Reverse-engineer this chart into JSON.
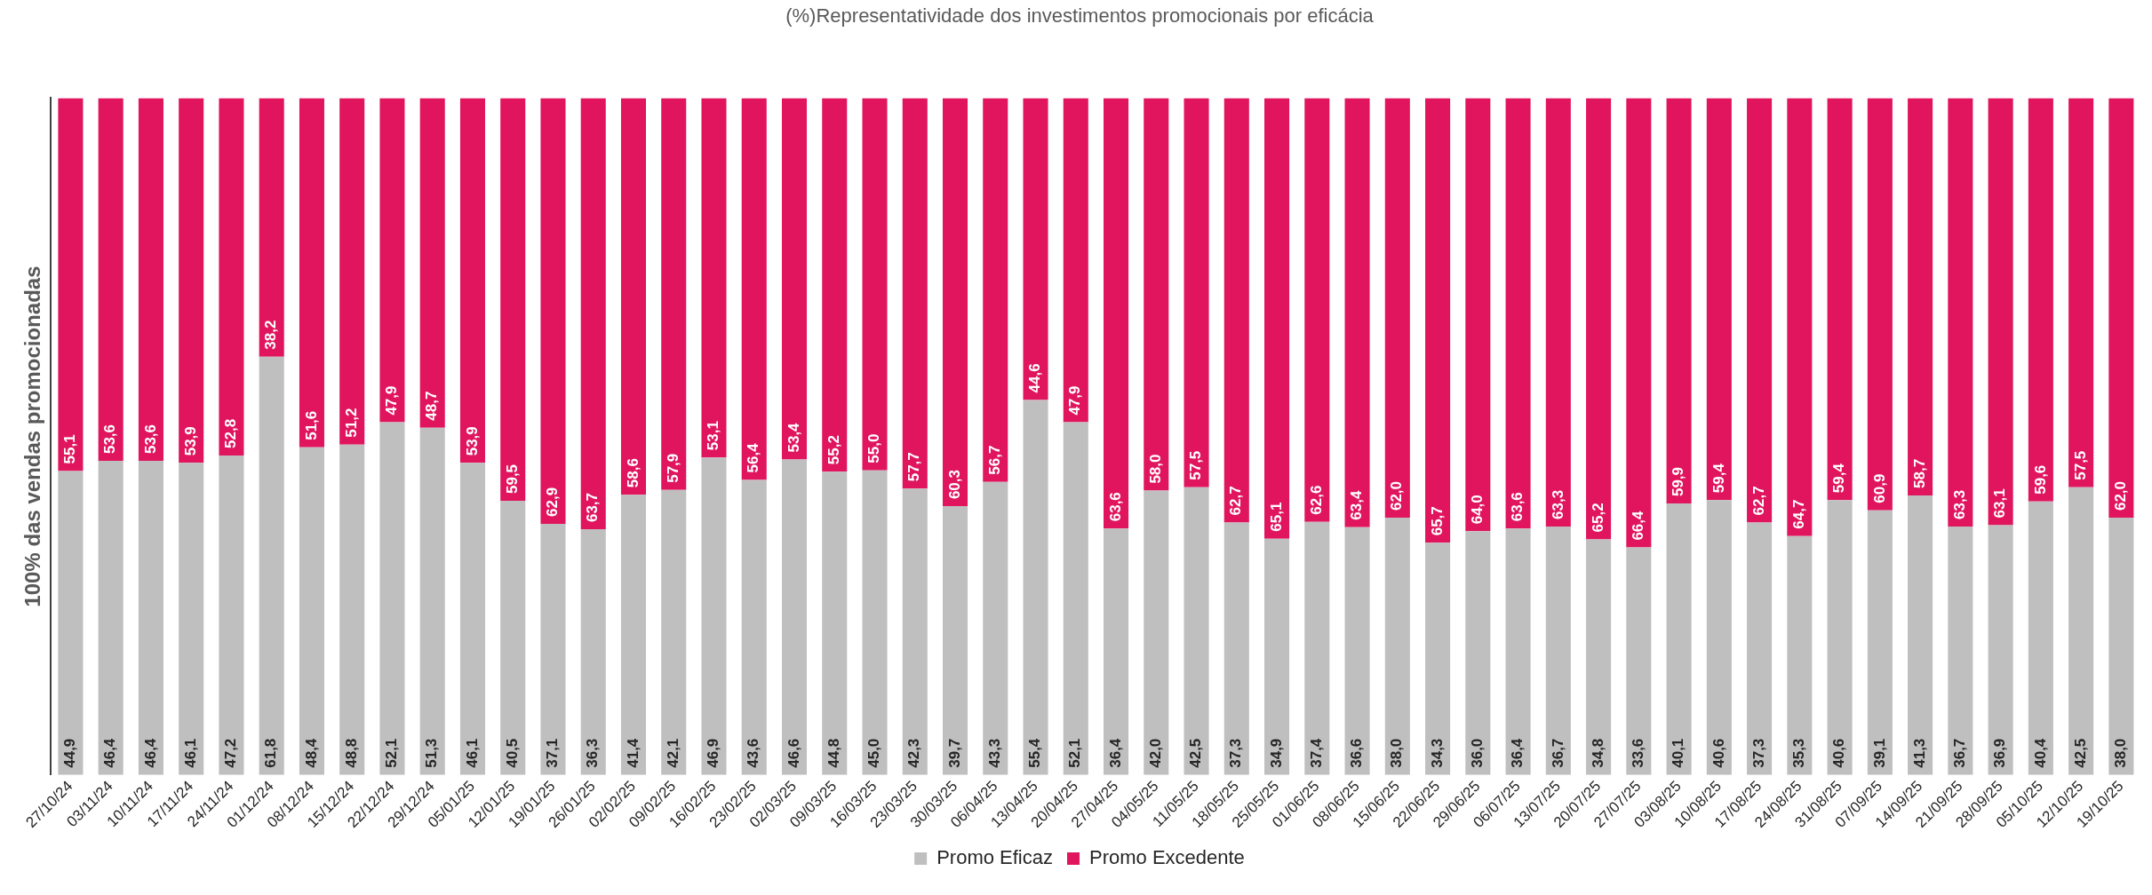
{
  "chart_data": {
    "type": "bar",
    "stacked": true,
    "title": "(%)Representatividade dos investimentos promocionais por eficácia",
    "ylabel": "100% das vendas promocionadas",
    "legend": "bottom",
    "grid": false,
    "tick_labels": "x",
    "categories": [
      "27/10/24",
      "03/11/24",
      "10/11/24",
      "17/11/24",
      "24/11/24",
      "01/12/24",
      "08/12/24",
      "15/12/24",
      "22/12/24",
      "29/12/24",
      "05/01/25",
      "12/01/25",
      "19/01/25",
      "26/01/25",
      "02/02/25",
      "09/02/25",
      "16/02/25",
      "23/02/25",
      "02/03/25",
      "09/03/25",
      "16/03/25",
      "23/03/25",
      "30/03/25",
      "06/04/25",
      "13/04/25",
      "20/04/25",
      "27/04/25",
      "04/05/25",
      "11/05/25",
      "18/05/25",
      "25/05/25",
      "01/06/25",
      "08/06/25",
      "15/06/25",
      "22/06/25",
      "29/06/25",
      "06/07/25",
      "13/07/25",
      "20/07/25",
      "27/07/25",
      "03/08/25",
      "10/08/25",
      "17/08/25",
      "24/08/25",
      "31/08/25",
      "07/09/25",
      "14/09/25",
      "21/09/25",
      "28/09/25",
      "05/10/25",
      "12/10/25",
      "19/10/25"
    ],
    "series": [
      {
        "name": "Promo Eficaz",
        "color": "#bfbfbf",
        "values": [
          44.9,
          46.4,
          46.4,
          46.1,
          47.2,
          61.8,
          48.4,
          48.8,
          52.1,
          51.3,
          46.1,
          40.5,
          37.1,
          36.3,
          41.4,
          42.1,
          46.9,
          43.6,
          46.6,
          44.8,
          45.0,
          42.3,
          39.7,
          43.3,
          55.4,
          52.1,
          36.4,
          42.0,
          42.5,
          37.3,
          34.9,
          37.4,
          36.6,
          38.0,
          34.3,
          36.0,
          36.4,
          36.7,
          34.8,
          33.6,
          40.1,
          40.6,
          37.3,
          35.3,
          40.6,
          39.1,
          41.3,
          36.7,
          36.9,
          40.4,
          42.5,
          38.0
        ],
        "value_labels": [
          "44,9",
          "46,4",
          "46,4",
          "46,1",
          "47,2",
          "61,8",
          "48,4",
          "48,8",
          "52,1",
          "51,3",
          "46,1",
          "40,5",
          "37,1",
          "36,3",
          "41,4",
          "42,1",
          "46,9",
          "43,6",
          "46,6",
          "44,8",
          "45,0",
          "42,3",
          "39,7",
          "43,3",
          "55,4",
          "52,1",
          "36,4",
          "42,0",
          "42,5",
          "37,3",
          "34,9",
          "37,4",
          "36,6",
          "38,0",
          "34,3",
          "36,0",
          "36,4",
          "36,7",
          "34,8",
          "33,6",
          "40,1",
          "40,6",
          "37,3",
          "35,3",
          "40,6",
          "39,1",
          "41,3",
          "36,7",
          "36,9",
          "40,4",
          "42,5",
          "38,0"
        ]
      },
      {
        "name": "Promo Excedente",
        "color": "#e0155d",
        "values": [
          55.1,
          53.6,
          53.6,
          53.9,
          52.8,
          38.2,
          51.6,
          51.2,
          47.9,
          48.7,
          53.9,
          59.5,
          62.9,
          63.7,
          58.6,
          57.9,
          53.1,
          56.4,
          53.4,
          55.2,
          55.0,
          57.7,
          60.3,
          56.7,
          44.6,
          47.9,
          63.6,
          58.0,
          57.5,
          62.7,
          65.1,
          62.6,
          63.4,
          62.0,
          65.7,
          64.0,
          63.6,
          63.3,
          65.2,
          66.4,
          59.9,
          59.4,
          62.7,
          64.7,
          59.4,
          60.9,
          58.7,
          63.3,
          63.1,
          59.6,
          57.5,
          62.0
        ],
        "value_labels": [
          "55,1",
          "53,6",
          "53,6",
          "53,9",
          "52,8",
          "38,2",
          "51,6",
          "51,2",
          "47,9",
          "48,7",
          "53,9",
          "59,5",
          "62,9",
          "63,7",
          "58,6",
          "57,9",
          "53,1",
          "56,4",
          "53,4",
          "55,2",
          "55,0",
          "57,7",
          "60,3",
          "56,7",
          "44,6",
          "47,9",
          "63,6",
          "58,0",
          "57,5",
          "62,7",
          "65,1",
          "62,6",
          "63,4",
          "62,0",
          "65,7",
          "64,0",
          "63,6",
          "63,3",
          "65,2",
          "66,4",
          "59,9",
          "59,4",
          "62,7",
          "64,7",
          "59,4",
          "60,9",
          "58,7",
          "63,3",
          "63,1",
          "59,6",
          "57,5",
          "62,0"
        ]
      }
    ]
  }
}
